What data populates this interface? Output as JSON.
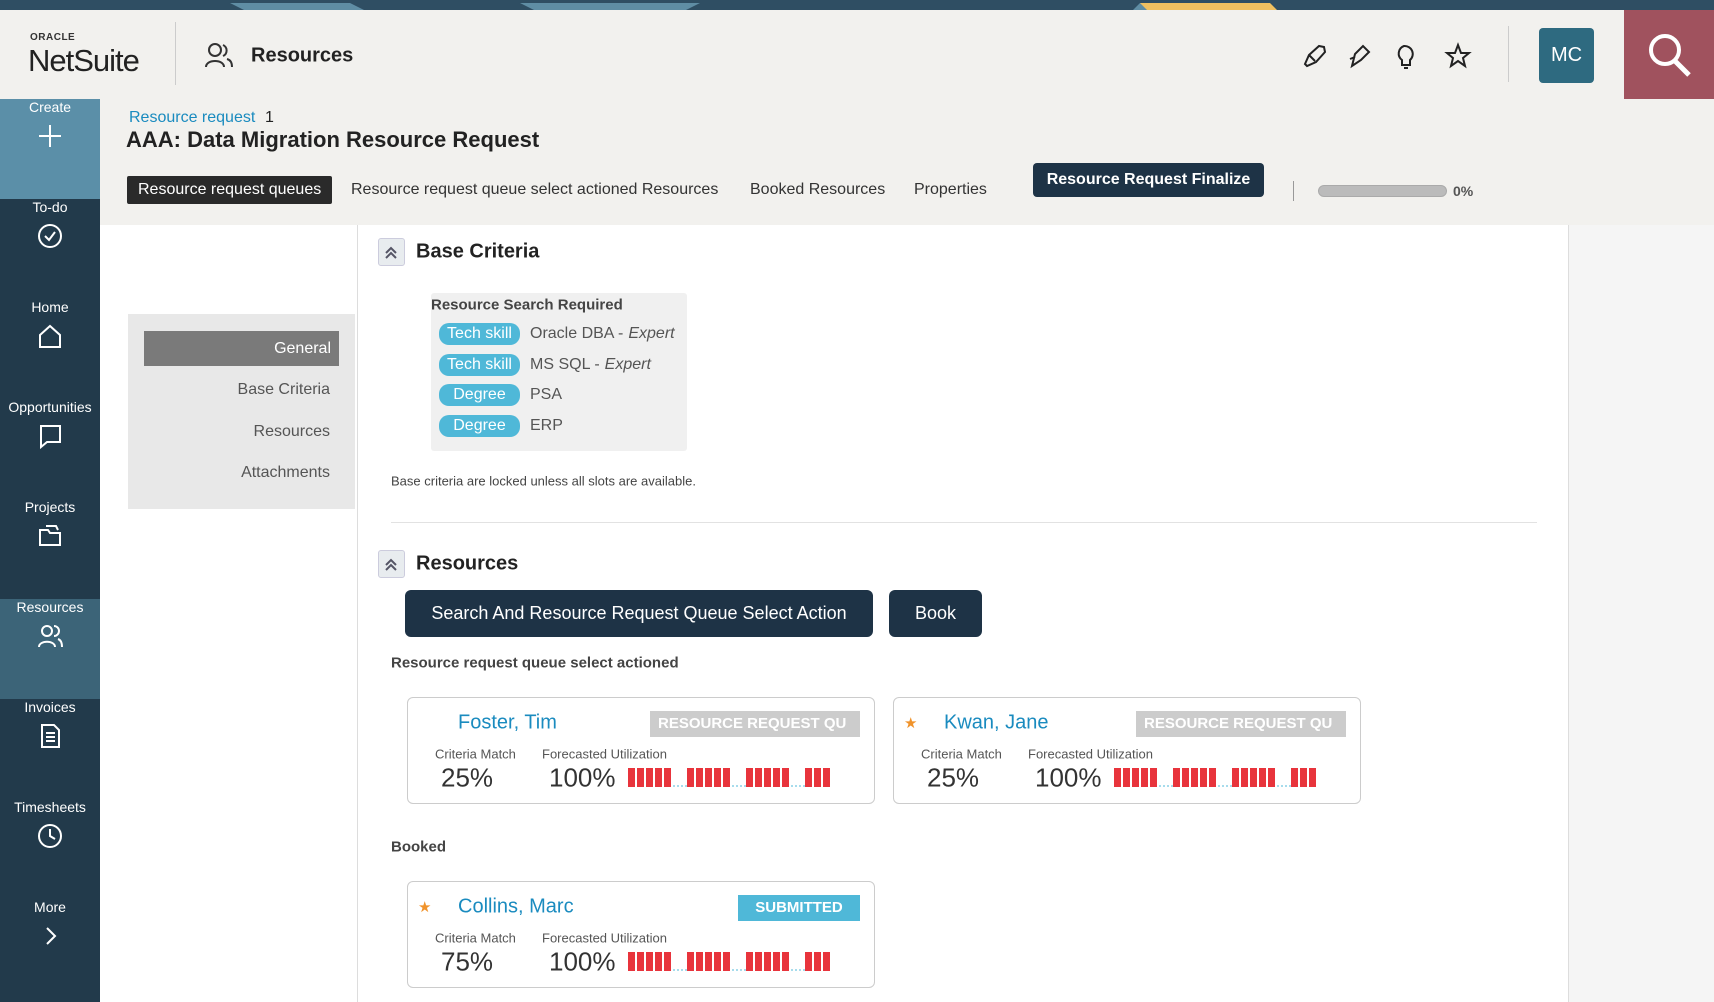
{
  "header": {
    "brand_small": "ORACLE",
    "brand": "NetSuite",
    "section": "Resources",
    "avatar": "MC"
  },
  "nav": [
    "Create",
    "To-do",
    "Home",
    "Opportunities",
    "Projects",
    "Resources",
    "Invoices",
    "Timesheets",
    "More"
  ],
  "active_nav": 5,
  "record": {
    "breadcrumb": "Resource request",
    "breadcrumb_id": "1",
    "title": "AAA: Data Migration Resource Request"
  },
  "tabs": [
    "Resource request queues",
    "Resource request queue select actioned Resources",
    "Booked Resources",
    "Properties"
  ],
  "finalize_button": "Resource Request Finalize",
  "progress": "0%",
  "side_menu": [
    "General",
    "Base Criteria",
    "Resources",
    "Attachments"
  ],
  "base_criteria": {
    "heading": "Base Criteria",
    "subheading": "Resource Search Required",
    "items": [
      {
        "tag": "Tech skill",
        "name": "Oracle DBA -",
        "level": "Expert"
      },
      {
        "tag": "Tech skill",
        "name": "MS SQL -",
        "level": "Expert"
      },
      {
        "tag": "Degree",
        "name": "PSA"
      },
      {
        "tag": "Degree",
        "name": "ERP"
      }
    ],
    "note": "Base criteria are locked unless all slots are available."
  },
  "resources": {
    "heading": "Resources",
    "buttons": [
      "Search And Resource Request Queue Select Action",
      "Book"
    ],
    "queue_heading": "Resource request queue select actioned",
    "queue": [
      {
        "name": "Foster, Tim",
        "starred": false,
        "status": "RESOURCE REQUEST QU",
        "match_label": "Criteria Match",
        "match": "25%",
        "util_label": "Forecasted Utilization",
        "util": "100%"
      },
      {
        "name": "Kwan, Jane",
        "starred": true,
        "status": "RESOURCE REQUEST QU",
        "match_label": "Criteria Match",
        "match": "25%",
        "util_label": "Forecasted Utilization",
        "util": "100%"
      }
    ],
    "booked_heading": "Booked",
    "booked": [
      {
        "name": "Collins, Marc",
        "starred": true,
        "status": "SUBMITTED",
        "match_label": "Criteria Match",
        "match": "75%",
        "util_label": "Forecasted Utilization",
        "util": "100%"
      }
    ]
  }
}
